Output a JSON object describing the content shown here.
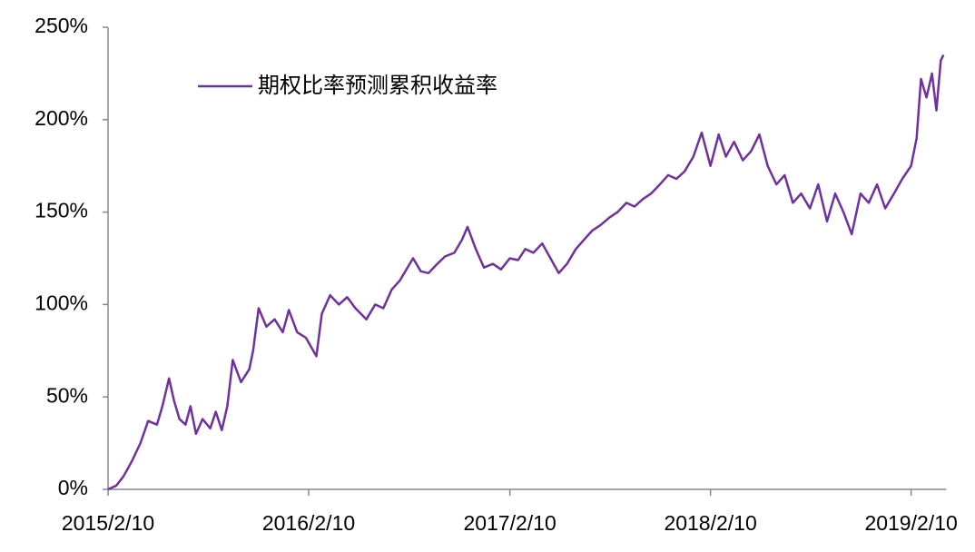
{
  "chart_data": {
    "type": "line",
    "x": [
      "2015/2/10",
      "2015/2/25",
      "2015/3/10",
      "2015/3/25",
      "2015/4/10",
      "2015/4/24",
      "2015/5/10",
      "2015/5/20",
      "2015/6/1",
      "2015/6/10",
      "2015/6/20",
      "2015/7/1",
      "2015/7/10",
      "2015/7/20",
      "2015/8/1",
      "2015/8/15",
      "2015/8/25",
      "2015/9/5",
      "2015/9/15",
      "2015/9/25",
      "2015/10/10",
      "2015/10/25",
      "2015/11/1",
      "2015/11/11",
      "2015/11/25",
      "2015/12/10",
      "2015/12/25",
      "2016/1/5",
      "2016/1/20",
      "2016/2/5",
      "2016/2/24",
      "2016/3/5",
      "2016/3/20",
      "2016/4/5",
      "2016/4/20",
      "2016/5/5",
      "2016/5/25",
      "2016/6/10",
      "2016/6/25",
      "2016/7/10",
      "2016/7/25",
      "2016/8/18",
      "2016/9/1",
      "2016/9/15",
      "2016/10/1",
      "2016/10/15",
      "2016/11/1",
      "2016/11/15",
      "2016/11/25",
      "2016/12/10",
      "2016/12/25",
      "2017/1/10",
      "2017/1/25",
      "2017/2/10",
      "2017/2/25",
      "2017/3/10",
      "2017/3/25",
      "2017/4/10",
      "2017/4/25",
      "2017/5/10",
      "2017/5/25",
      "2017/6/10",
      "2017/6/25",
      "2017/7/10",
      "2017/7/25",
      "2017/8/10",
      "2017/8/25",
      "2017/9/10",
      "2017/9/25",
      "2017/10/10",
      "2017/10/25",
      "2017/11/10",
      "2017/11/25",
      "2017/12/10",
      "2017/12/25",
      "2018/1/10",
      "2018/1/25",
      "2018/2/10",
      "2018/2/25",
      "2018/3/10",
      "2018/3/25",
      "2018/4/10",
      "2018/4/25",
      "2018/5/10",
      "2018/5/25",
      "2018/6/10",
      "2018/6/25",
      "2018/7/10",
      "2018/7/25",
      "2018/8/10",
      "2018/8/25",
      "2018/9/10",
      "2018/9/25",
      "2018/10/10",
      "2018/10/25",
      "2018/11/10",
      "2018/11/25",
      "2018/12/10",
      "2018/12/25",
      "2019/1/10",
      "2019/1/25",
      "2019/2/10",
      "2019/2/20",
      "2019/2/28",
      "2019/3/10",
      "2019/3/20",
      "2019/3/28",
      "2019/4/5",
      "2019/4/10"
    ],
    "series": [
      {
        "name": "期权比率预测累积收益率",
        "color": "#7030a0",
        "values": [
          0,
          2,
          7,
          15,
          25,
          37,
          35,
          45,
          60,
          48,
          38,
          35,
          45,
          30,
          38,
          33,
          42,
          32,
          45,
          70,
          58,
          65,
          75,
          98,
          88,
          92,
          85,
          97,
          85,
          82,
          72,
          95,
          105,
          100,
          104,
          98,
          92,
          100,
          98,
          108,
          113,
          125,
          118,
          117,
          122,
          126,
          128,
          135,
          142,
          130,
          120,
          122,
          119,
          125,
          124,
          130,
          128,
          133,
          125,
          117,
          122,
          130,
          135,
          140,
          143,
          147,
          150,
          155,
          153,
          157,
          160,
          165,
          170,
          168,
          172,
          180,
          193,
          175,
          192,
          180,
          188,
          178,
          183,
          192,
          175,
          165,
          170,
          155,
          160,
          152,
          165,
          145,
          160,
          150,
          138,
          160,
          155,
          165,
          152,
          160,
          168,
          175,
          190,
          222,
          212,
          225,
          205,
          232,
          235
        ]
      }
    ],
    "xlim": [
      "2015/2/10",
      "2019/4/15"
    ],
    "xticks": [
      "2015/2/10",
      "2016/2/10",
      "2017/2/10",
      "2018/2/10",
      "2019/2/10"
    ],
    "ylim": [
      0,
      250
    ],
    "yticks": [
      {
        "value": 0,
        "label": "0%"
      },
      {
        "value": 50,
        "label": "50%"
      },
      {
        "value": 100,
        "label": "100%"
      },
      {
        "value": 150,
        "label": "150%"
      },
      {
        "value": 200,
        "label": "200%"
      },
      {
        "value": 250,
        "label": "250%"
      }
    ],
    "legend": "upper-left"
  }
}
